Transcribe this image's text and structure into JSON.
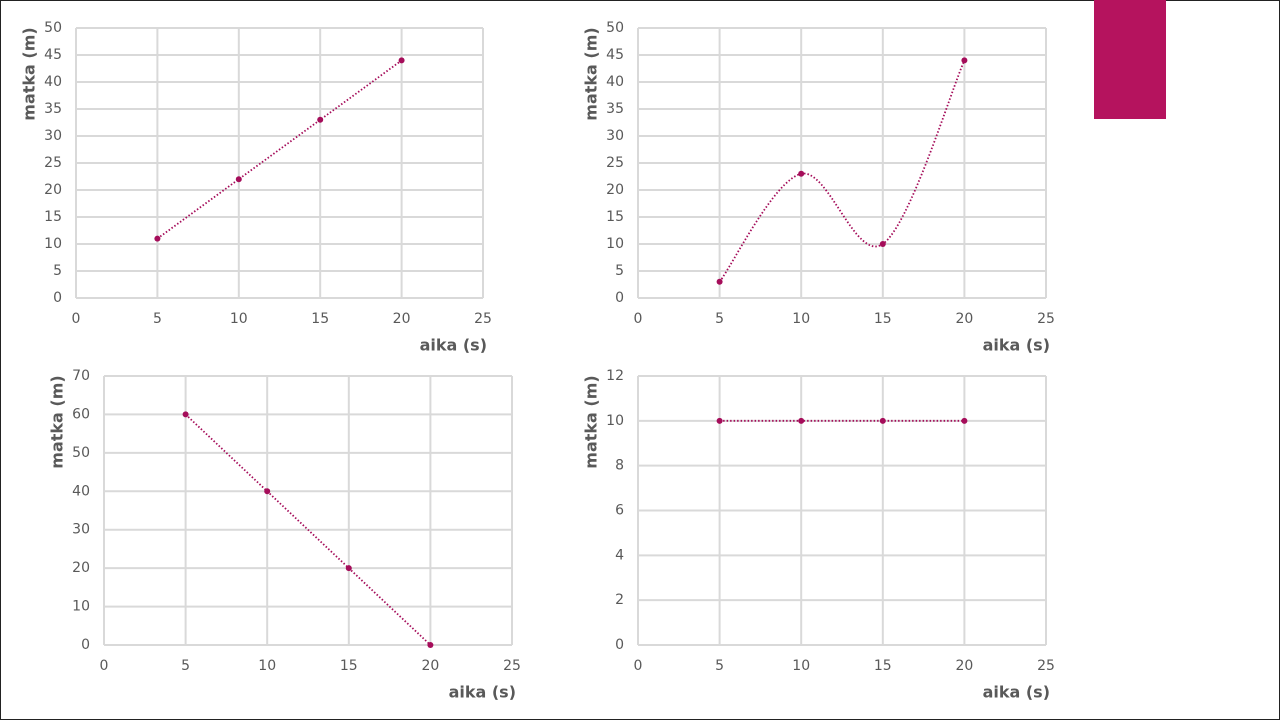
{
  "chart_data": [
    {
      "type": "scatter",
      "line": "dotted",
      "smooth": false,
      "x_label": "aika (s)",
      "y_label": "matka (m)",
      "x": [
        5,
        10,
        15,
        20
      ],
      "values": [
        11,
        22,
        33,
        44
      ],
      "color": "#a50d5a",
      "xlim": [
        0,
        25
      ],
      "xticks": [
        0,
        5,
        10,
        15,
        20,
        25
      ],
      "ylim": [
        0,
        50
      ],
      "yticks": [
        0,
        5,
        10,
        15,
        20,
        25,
        30,
        35,
        40,
        45,
        50
      ],
      "grid": true
    },
    {
      "type": "scatter",
      "line": "dotted",
      "smooth": true,
      "x_label": "aika (s)",
      "y_label": "matka (m)",
      "x": [
        5,
        10,
        15,
        20
      ],
      "values": [
        3,
        23,
        10,
        44
      ],
      "color": "#a50d5a",
      "xlim": [
        0,
        25
      ],
      "xticks": [
        0,
        5,
        10,
        15,
        20,
        25
      ],
      "ylim": [
        0,
        50
      ],
      "yticks": [
        0,
        5,
        10,
        15,
        20,
        25,
        30,
        35,
        40,
        45,
        50
      ],
      "grid": true
    },
    {
      "type": "scatter",
      "line": "dotted",
      "smooth": false,
      "x_label": "aika (s)",
      "y_label": "matka (m)",
      "x": [
        5,
        10,
        15,
        20
      ],
      "values": [
        60,
        40,
        20,
        0
      ],
      "color": "#a50d5a",
      "xlim": [
        0,
        25
      ],
      "xticks": [
        0,
        5,
        10,
        15,
        20,
        25
      ],
      "ylim": [
        0,
        70
      ],
      "yticks": [
        0,
        10,
        20,
        30,
        40,
        50,
        60,
        70
      ],
      "grid": true
    },
    {
      "type": "scatter",
      "line": "dotted",
      "smooth": false,
      "x_label": "aika (s)",
      "y_label": "matka (m)",
      "x": [
        5,
        10,
        15,
        20
      ],
      "values": [
        10,
        10,
        10,
        10
      ],
      "color": "#a50d5a",
      "xlim": [
        0,
        25
      ],
      "xticks": [
        0,
        5,
        10,
        15,
        20,
        25
      ],
      "ylim": [
        0,
        12
      ],
      "yticks": [
        0,
        2,
        4,
        6,
        8,
        10,
        12
      ],
      "grid": true
    }
  ]
}
